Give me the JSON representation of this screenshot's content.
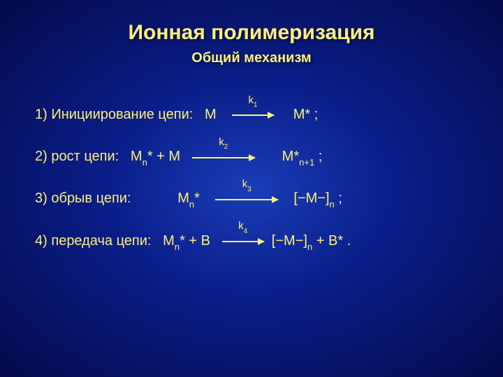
{
  "title": "Ионная полимеризация",
  "subtitle": "Общий механизм",
  "colors": {
    "text": "#fff07a",
    "bg_center": "#1a3db8",
    "bg_mid": "#0a1e8a",
    "bg_outer": "#040a4a"
  },
  "font": {
    "title_size": 30,
    "subtitle_size": 20,
    "body_size": 20
  },
  "rows": [
    {
      "num": "1)",
      "name": "Инициирование цепи:",
      "lhs_pre": "M",
      "lhs_sub": "",
      "lhs_post": "",
      "k": "k",
      "ksub": "1",
      "arrow_width": 60,
      "rhs_pre": "M*",
      "rhs_sub": "",
      "rhs_post": " ;"
    },
    {
      "num": "2)",
      "name": "рост цепи:",
      "lhs_pre": "M",
      "lhs_sub": "n",
      "lhs_post": "* + M",
      "k": "k",
      "ksub": "2",
      "arrow_width": 90,
      "rhs_pre": " M*",
      "rhs_sub": "n+1",
      "rhs_post": " ;"
    },
    {
      "num": "3)",
      "name": "обрыв цепи:",
      "lhs_pre": "           M",
      "lhs_sub": "n",
      "lhs_post": "*",
      "k": "k",
      "ksub": "3",
      "arrow_width": 90,
      "rhs_pre": "   [−M−]",
      "rhs_sub": "n",
      "rhs_post": "  ;"
    },
    {
      "num": "4)",
      "name": "передача цепи:",
      "lhs_pre": "M",
      "lhs_sub": "n",
      "lhs_post": "* + B",
      "k": "k",
      "ksub": "4",
      "arrow_width": 60,
      "rhs_pre": " [−M−]",
      "rhs_sub": "n",
      "rhs_post": " + B* ."
    }
  ]
}
